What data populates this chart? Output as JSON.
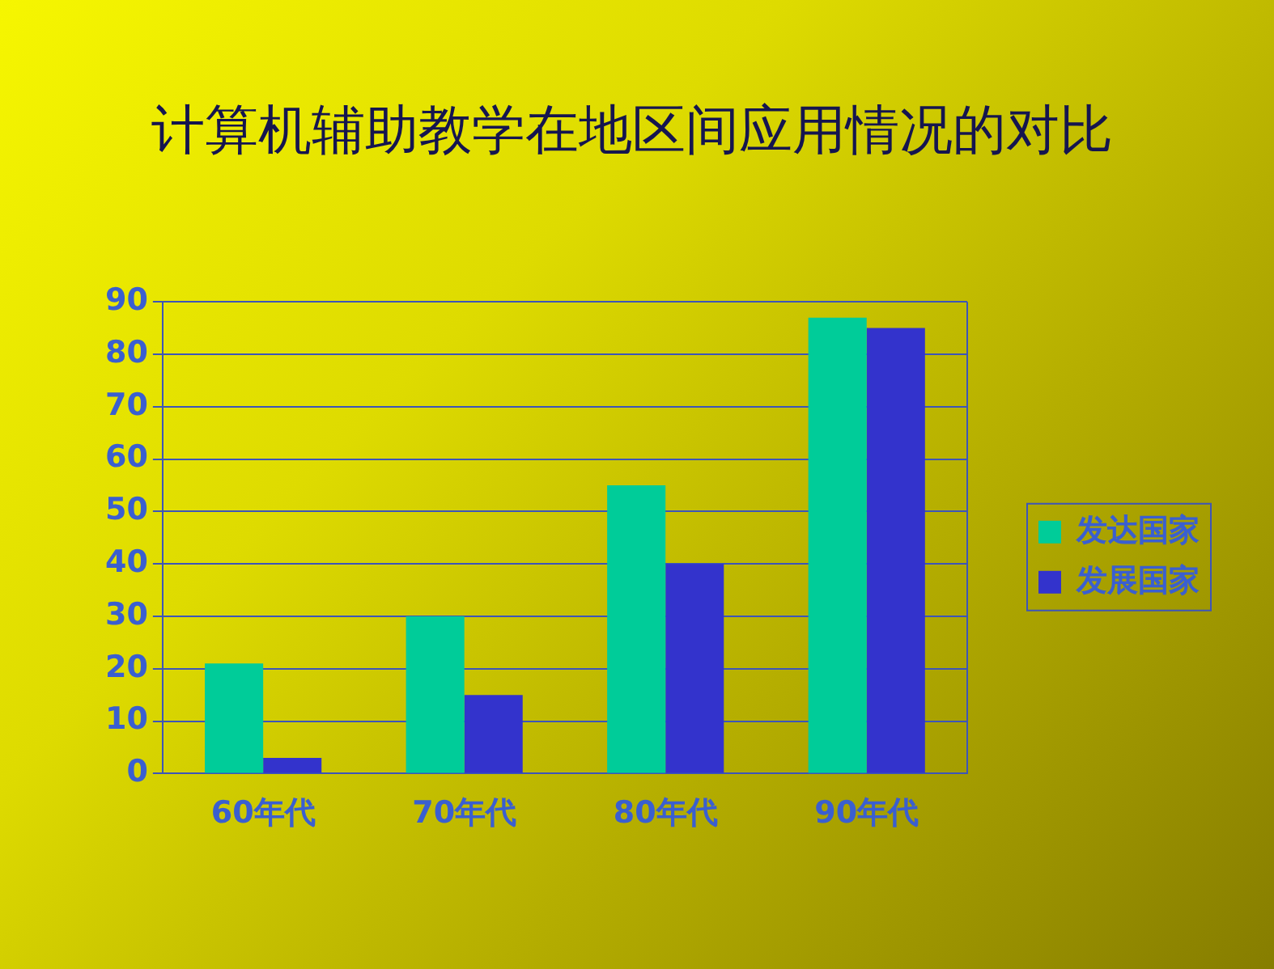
{
  "chart_data": {
    "type": "bar",
    "title": "计算机辅助教学在地区间应用情况的对比",
    "categories": [
      "60年代",
      "70年代",
      "80年代",
      "90年代"
    ],
    "series": [
      {
        "name": "发达国家",
        "color": "#00cc99",
        "values": [
          21,
          30,
          55,
          87
        ]
      },
      {
        "name": "发展国家",
        "color": "#3333cc",
        "values": [
          3,
          15,
          40,
          85
        ]
      }
    ],
    "ylim": [
      0,
      90
    ],
    "yticks": [
      0,
      10,
      20,
      30,
      40,
      50,
      60,
      70,
      80,
      90
    ],
    "grid": "y",
    "legend": "right"
  }
}
